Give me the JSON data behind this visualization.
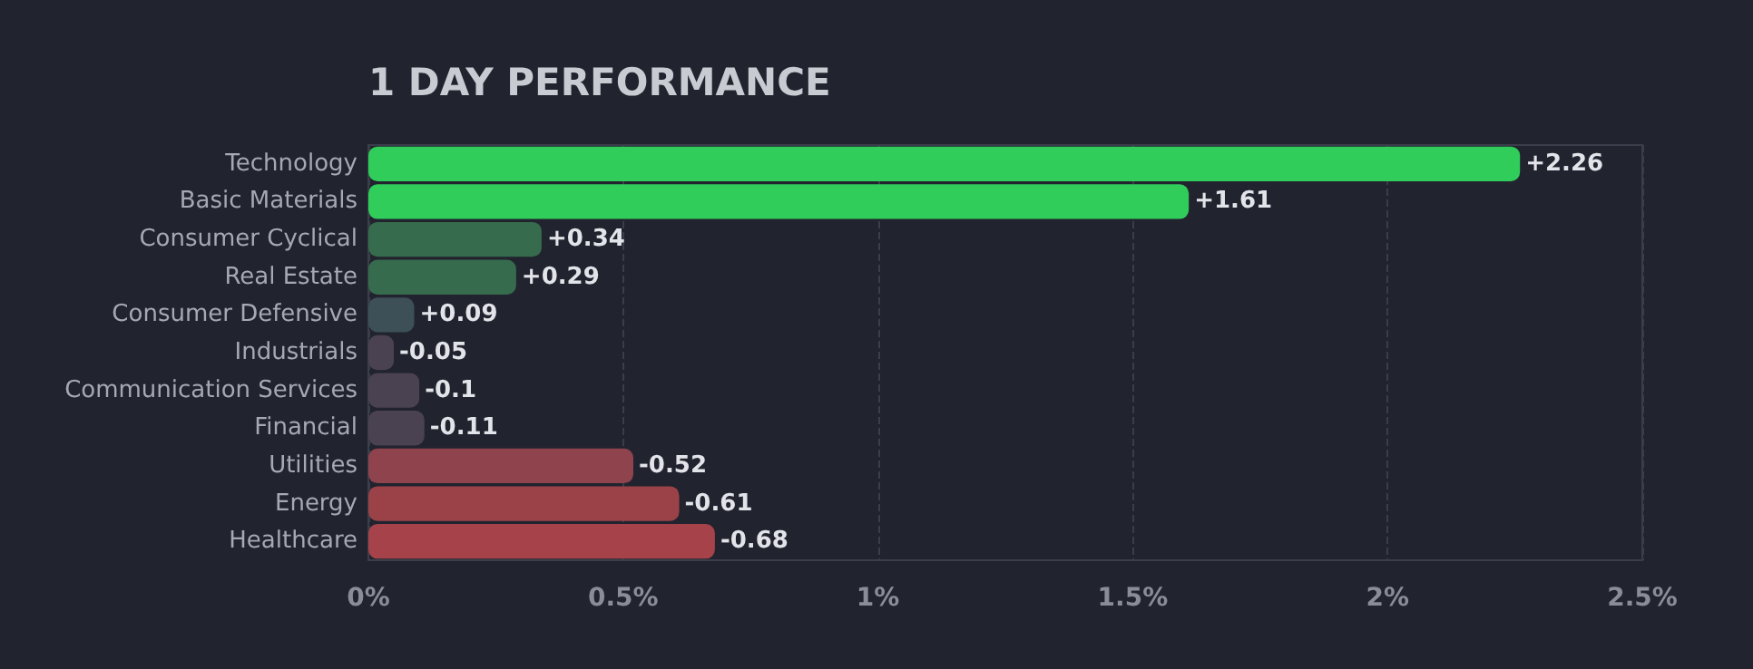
{
  "chart_data": {
    "type": "bar",
    "orientation": "horizontal",
    "title": "1 DAY PERFORMANCE",
    "categories": [
      "Technology",
      "Basic Materials",
      "Consumer Cyclical",
      "Real Estate",
      "Consumer Defensive",
      "Industrials",
      "Communication Services",
      "Financial",
      "Utilities",
      "Energy",
      "Healthcare"
    ],
    "values": [
      2.26,
      1.61,
      0.34,
      0.29,
      0.09,
      -0.05,
      -0.1,
      -0.11,
      -0.52,
      -0.61,
      -0.68
    ],
    "base": [
      0,
      0,
      0,
      0,
      0,
      0.05,
      0.1,
      0.11,
      0.52,
      0.61,
      0.68
    ],
    "value_labels": [
      "+2.26",
      "+1.61",
      "+0.34",
      "+0.29",
      "+0.09",
      "-0.05",
      "-0.1",
      "-0.11",
      "-0.52",
      "-0.61",
      "-0.68"
    ],
    "colors": [
      "#31cd5b",
      "#31cd5b",
      "#366b4d",
      "#366b4d",
      "#3d4f57",
      "#4a4250",
      "#4a4250",
      "#4a4250",
      "#8e434d",
      "#9b4249",
      "#a6434a"
    ],
    "xlim": [
      0,
      2.5
    ],
    "xticks": [
      {
        "value": 0,
        "label": "0%"
      },
      {
        "value": 0.5,
        "label": "0.5%"
      },
      {
        "value": 1,
        "label": "1%"
      },
      {
        "value": 1.5,
        "label": "1.5%"
      },
      {
        "value": 2,
        "label": "2%"
      },
      {
        "value": 2.5,
        "label": "2.5%"
      }
    ],
    "grid": "x"
  }
}
